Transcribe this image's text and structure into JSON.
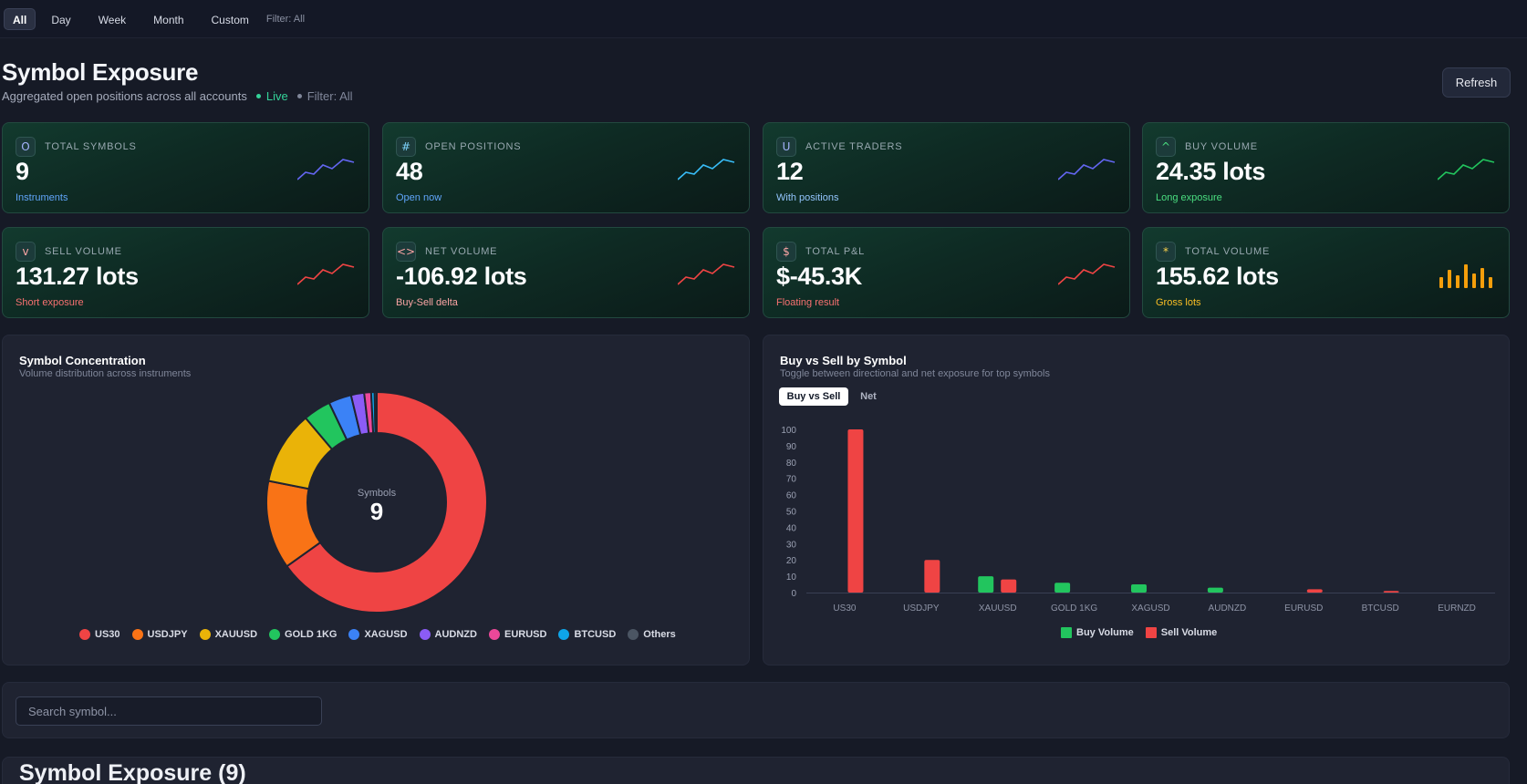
{
  "filters": {
    "tabs": [
      "All",
      "Day",
      "Week",
      "Month",
      "Custom"
    ],
    "active": "All",
    "filter_label": "Filter: All"
  },
  "header": {
    "title": "Symbol Exposure",
    "subtitle": "Aggregated open positions across all accounts",
    "live_label": "Live",
    "filter_label": "Filter: All",
    "refresh_label": "Refresh"
  },
  "kpis": [
    {
      "icon": "O",
      "label": "TOTAL SYMBOLS",
      "value": "9",
      "sub": "Instruments",
      "spark": "line",
      "color": "#6366f1",
      "sub_color": "#60a5fa",
      "icon_color": "#a5b4fc"
    },
    {
      "icon": "#",
      "label": "OPEN POSITIONS",
      "value": "48",
      "sub": "Open now",
      "spark": "line",
      "color": "#38bdf8",
      "sub_color": "#60a5fa",
      "icon_color": "#7dd3fc"
    },
    {
      "icon": "U",
      "label": "ACTIVE TRADERS",
      "value": "12",
      "sub": "With positions",
      "spark": "line",
      "color": "#6366f1",
      "sub_color": "#93c5fd",
      "icon_color": "#a5b4fc"
    },
    {
      "icon": "^",
      "label": "BUY VOLUME",
      "value": "24.35 lots",
      "sub": "Long exposure",
      "spark": "line",
      "color": "#22c55e",
      "sub_color": "#4ade80",
      "icon_color": "#4ade80"
    },
    {
      "icon": "v",
      "label": "SELL VOLUME",
      "value": "131.27 lots",
      "sub": "Short exposure",
      "spark": "line",
      "color": "#ef4444",
      "sub_color": "#f87171",
      "icon_color": "#fca5a5"
    },
    {
      "icon": "<>",
      "label": "NET VOLUME",
      "value": "-106.92 lots",
      "sub": "Buy-Sell delta",
      "spark": "line",
      "color": "#ef4444",
      "sub_color": "#fca5a5",
      "icon_color": "#fca5a5"
    },
    {
      "icon": "$",
      "label": "TOTAL P&L",
      "value": "$-45.3K",
      "sub": "Floating result",
      "spark": "line",
      "color": "#ef4444",
      "sub_color": "#f87171",
      "icon_color": "#fca5a5"
    },
    {
      "icon": "*",
      "label": "TOTAL VOLUME",
      "value": "155.62 lots",
      "sub": "Gross lots",
      "spark": "bars",
      "color": "#f59e0b",
      "sub_color": "#fbbf24",
      "icon_color": "#fcd34d"
    }
  ],
  "concentration": {
    "title": "Symbol Concentration",
    "subtitle": "Volume distribution across instruments",
    "center_label": "Symbols",
    "center_value": "9"
  },
  "buysell": {
    "title": "Buy vs Sell by Symbol",
    "subtitle": "Toggle between directional and net exposure for top symbols",
    "toggle_active": "Buy vs Sell",
    "toggle_other": "Net"
  },
  "search": {
    "placeholder": "Search symbol..."
  },
  "table": {
    "title": "Symbol Exposure (9)"
  },
  "chart_data": [
    {
      "type": "pie",
      "title": "Symbol Concentration",
      "categories": [
        "US30",
        "USDJPY",
        "XAUUSD",
        "GOLD 1KG",
        "XAGUSD",
        "AUDNZD",
        "EURUSD",
        "BTCUSD",
        "Others"
      ],
      "values": [
        64.3,
        12.8,
        10.6,
        4.0,
        3.3,
        1.9,
        1.0,
        0.5,
        0.3
      ],
      "colors": [
        "#ef4444",
        "#f97316",
        "#eab308",
        "#22c55e",
        "#3b82f6",
        "#8b5cf6",
        "#ec4899",
        "#0ea5e9",
        "#4b5563"
      ]
    },
    {
      "type": "bar",
      "title": "Buy vs Sell by Symbol",
      "categories": [
        "US30",
        "USDJPY",
        "XAUUSD",
        "GOLD 1KG",
        "XAGUSD",
        "AUDNZD",
        "EURUSD",
        "BTCUSD",
        "EURNZD"
      ],
      "series": [
        {
          "name": "Buy Volume",
          "color": "#22c55e",
          "values": [
            0,
            0,
            10,
            6,
            5,
            3,
            0,
            0,
            0
          ]
        },
        {
          "name": "Sell Volume",
          "color": "#ef4444",
          "values": [
            100,
            20,
            8,
            0,
            0,
            0,
            2,
            1,
            0
          ]
        }
      ],
      "ylim": [
        0,
        100
      ],
      "yticks": [
        0,
        10,
        20,
        30,
        40,
        50,
        60,
        70,
        80,
        90,
        100
      ]
    }
  ]
}
